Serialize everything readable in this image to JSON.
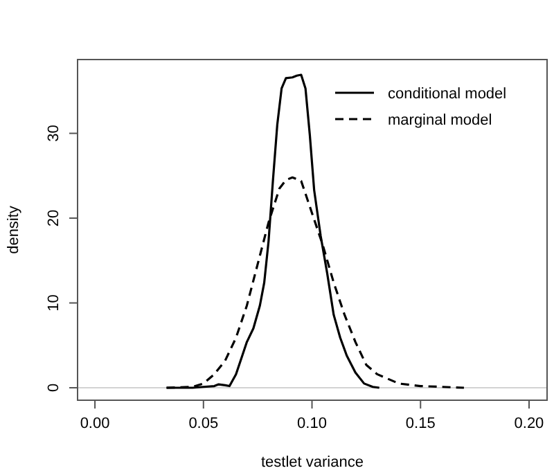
{
  "chart_data": {
    "type": "line",
    "xlabel": "testlet variance",
    "ylabel": "density",
    "xlim": [
      -0.008,
      0.2083
    ],
    "ylim": [
      -1.47,
      38.7
    ],
    "xticks": [
      {
        "value": 0,
        "label": "0.00"
      },
      0.05,
      {
        "value": 0.1,
        "label": "0.10"
      },
      0.15,
      {
        "value": 0.2,
        "label": "0.20"
      }
    ],
    "yticks": [
      0,
      10,
      20,
      30
    ],
    "legend": "top right",
    "grid": false,
    "ref_lines": [
      {
        "axis": "y",
        "value": 0,
        "color": "#d3d3d3"
      }
    ],
    "series": [
      {
        "name": "conditional model",
        "color": "#000000",
        "line_style": "solid",
        "x": [
          0.033,
          0.045,
          0.05,
          0.055,
          0.057,
          0.06,
          0.062,
          0.065,
          0.07,
          0.073,
          0.076,
          0.078,
          0.08,
          0.082,
          0.084,
          0.086,
          0.088,
          0.091,
          0.093,
          0.095,
          0.097,
          0.099,
          0.101,
          0.104,
          0.107,
          0.11,
          0.113,
          0.116,
          0.12,
          0.124,
          0.128,
          0.131
        ],
        "values": [
          0,
          0,
          0.1,
          0.2,
          0.4,
          0.3,
          0.2,
          1.6,
          5.4,
          7,
          9.7,
          12.4,
          17.3,
          24.4,
          31,
          35.3,
          36.5,
          36.6,
          36.8,
          36.9,
          35.3,
          29.8,
          23.3,
          17.9,
          13.5,
          8.6,
          5.9,
          3.8,
          1.8,
          0.5,
          0.1,
          0
        ]
      },
      {
        "name": "marginal model",
        "color": "#000000",
        "line_style": "dashed",
        "x": [
          0.033,
          0.045,
          0.05,
          0.055,
          0.06,
          0.065,
          0.07,
          0.075,
          0.08,
          0.085,
          0.088,
          0.091,
          0.095,
          0.1,
          0.105,
          0.11,
          0.115,
          0.12,
          0.125,
          0.13,
          0.14,
          0.15,
          0.16,
          0.17
        ],
        "values": [
          0,
          0.1,
          0.5,
          1.6,
          3.2,
          5.9,
          9.7,
          14.6,
          19.5,
          23.5,
          24.5,
          24.8,
          24.4,
          20.6,
          16.8,
          12.4,
          8.6,
          5.4,
          2.7,
          1.6,
          0.5,
          0.2,
          0.1,
          0
        ]
      }
    ]
  }
}
